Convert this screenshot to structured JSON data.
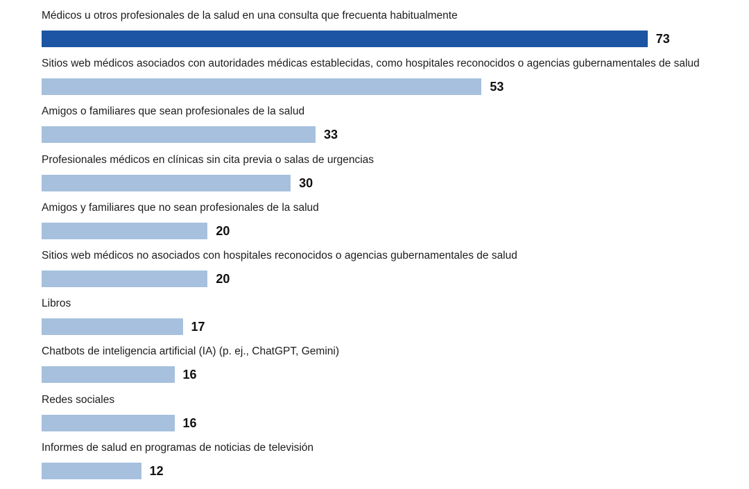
{
  "chart_data": {
    "type": "bar",
    "orientation": "horizontal",
    "title": "",
    "xlabel": "",
    "ylabel": "",
    "grid": false,
    "legend": false,
    "value_label_position": "end-of-bar",
    "categories": [
      "Médicos u otros profesionales de la salud en una consulta que frecuenta habitualmente",
      "Sitios web médicos asociados con autoridades médicas establecidas, como hospitales reconocidos o agencias gubernamentales de salud",
      "Amigos o familiares que sean profesionales de la salud",
      "Profesionales médicos en clínicas sin cita previa o salas de urgencias",
      "Amigos y familiares que no sean profesionales de la salud",
      "Sitios web médicos no asociados con hospitales reconocidos o agencias gubernamentales de salud",
      "Libros",
      "Chatbots de inteligencia artificial (IA) (p. ej., ChatGPT, Gemini)",
      "Redes sociales",
      "Informes de salud en programas de noticias de televisión"
    ],
    "values": [
      73,
      53,
      33,
      30,
      20,
      20,
      17,
      16,
      16,
      12
    ],
    "highlight_index": 0,
    "colors": {
      "highlight_bar": "#1b55a4",
      "bar": "#a6c0de",
      "value_text": "#101010",
      "label_text": "#1c1c1c"
    }
  }
}
